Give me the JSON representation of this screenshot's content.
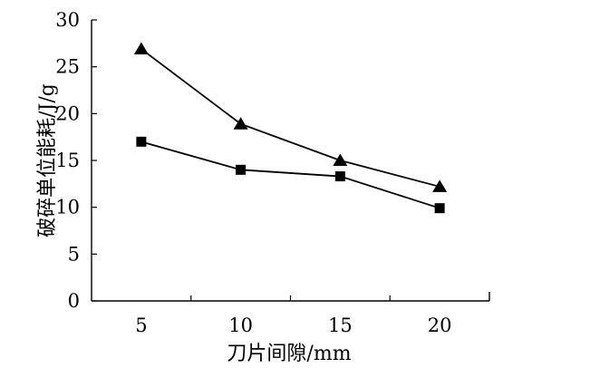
{
  "figure": {
    "background_color": "#ffffff",
    "axis_color": "#000000"
  },
  "chart_data": {
    "type": "line",
    "title": "",
    "xlabel": "刀片间隙/mm",
    "ylabel": "破碎单位能耗/J/g",
    "categories": [
      "5",
      "10",
      "15",
      "20"
    ],
    "series": [
      {
        "name": "triangle-series",
        "marker": "triangle",
        "color": "#000000",
        "values": [
          26.9,
          18.9,
          15.0,
          12.2
        ]
      },
      {
        "name": "square-series",
        "marker": "square",
        "color": "#000000",
        "values": [
          17.0,
          14.0,
          13.3,
          9.9
        ]
      }
    ],
    "ylim": [
      0,
      30
    ],
    "yticks": [
      0,
      5,
      10,
      15,
      20,
      25,
      30
    ],
    "grid": false,
    "legend": "none"
  }
}
